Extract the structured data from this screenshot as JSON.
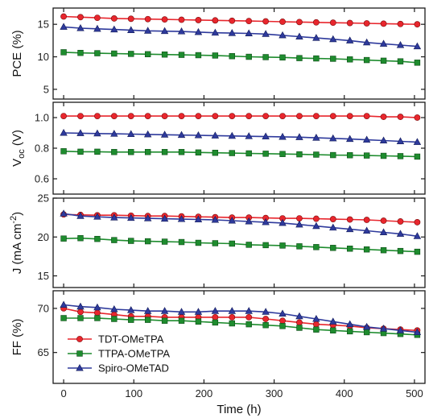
{
  "x_axis": {
    "label": "Time (h)",
    "ticks": [
      0,
      100,
      200,
      300,
      400,
      500
    ],
    "xlim": [
      -15,
      515
    ]
  },
  "legend": {
    "placement": "bottom-left of FF panel",
    "entries": [
      "TDT-OMeTPA",
      "TTPA-OMeTPA",
      "Spiro-OMeTAD"
    ]
  },
  "series_style": [
    {
      "name": "TDT-OMeTPA",
      "color": "#e8262d",
      "marker": "circle"
    },
    {
      "name": "TTPA-OMeTPA",
      "color": "#1e8c2e",
      "marker": "square"
    },
    {
      "name": "Spiro-OMeTAD",
      "color": "#2e3a9c",
      "marker": "triangle"
    }
  ],
  "chart_data": [
    {
      "type": "line",
      "panel": "PCE",
      "ylabel": "PCE (%)",
      "ylabel_sub": "",
      "ylabel_suffix": "",
      "ylim": [
        3.5,
        17.5
      ],
      "yticks": [
        5,
        10,
        15
      ],
      "ytick_labels": [
        "5",
        "10",
        "15"
      ],
      "x": [
        0,
        24,
        48,
        72,
        96,
        120,
        144,
        168,
        192,
        216,
        240,
        264,
        288,
        312,
        336,
        360,
        384,
        408,
        432,
        456,
        480,
        504
      ],
      "series": [
        {
          "name": "TDT-OMeTPA",
          "values": [
            16.2,
            16.1,
            16.0,
            15.9,
            15.85,
            15.8,
            15.75,
            15.7,
            15.65,
            15.6,
            15.55,
            15.5,
            15.45,
            15.4,
            15.35,
            15.3,
            15.25,
            15.2,
            15.15,
            15.1,
            15.05,
            15.0
          ]
        },
        {
          "name": "TTPA-OMeTPA",
          "values": [
            10.7,
            10.6,
            10.55,
            10.5,
            10.45,
            10.4,
            10.35,
            10.3,
            10.25,
            10.2,
            10.1,
            10.0,
            9.95,
            9.9,
            9.8,
            9.75,
            9.7,
            9.6,
            9.5,
            9.4,
            9.3,
            9.1
          ]
        },
        {
          "name": "Spiro-OMeTAD",
          "values": [
            14.6,
            14.4,
            14.3,
            14.2,
            14.1,
            14.0,
            13.95,
            13.9,
            13.8,
            13.7,
            13.65,
            13.6,
            13.5,
            13.3,
            13.1,
            12.9,
            12.7,
            12.5,
            12.2,
            12.0,
            11.8,
            11.6
          ]
        }
      ]
    },
    {
      "type": "line",
      "panel": "Voc",
      "ylabel": "V",
      "ylabel_sub": "oc",
      "ylabel_suffix": " (V)",
      "ylim": [
        0.5,
        1.1
      ],
      "yticks": [
        0.6,
        0.8,
        1.0
      ],
      "ytick_labels": [
        "0.6",
        "0.8",
        "1.0"
      ],
      "x": [
        0,
        24,
        48,
        72,
        96,
        120,
        144,
        168,
        192,
        216,
        240,
        264,
        288,
        312,
        336,
        360,
        384,
        408,
        432,
        456,
        480,
        504
      ],
      "series": [
        {
          "name": "TDT-OMeTPA",
          "values": [
            1.01,
            1.01,
            1.01,
            1.01,
            1.01,
            1.01,
            1.01,
            1.01,
            1.01,
            1.01,
            1.01,
            1.01,
            1.01,
            1.01,
            1.01,
            1.01,
            1.01,
            1.01,
            1.01,
            1.005,
            1.005,
            1.0
          ]
        },
        {
          "name": "TTPA-OMeTPA",
          "values": [
            0.78,
            0.777,
            0.777,
            0.775,
            0.775,
            0.775,
            0.775,
            0.775,
            0.772,
            0.77,
            0.768,
            0.766,
            0.764,
            0.762,
            0.76,
            0.758,
            0.755,
            0.754,
            0.752,
            0.75,
            0.748,
            0.745
          ]
        },
        {
          "name": "Spiro-OMeTAD",
          "values": [
            0.9,
            0.898,
            0.896,
            0.894,
            0.892,
            0.89,
            0.888,
            0.886,
            0.884,
            0.882,
            0.88,
            0.878,
            0.876,
            0.874,
            0.872,
            0.868,
            0.864,
            0.86,
            0.855,
            0.85,
            0.845,
            0.84
          ]
        }
      ]
    },
    {
      "type": "line",
      "panel": "J",
      "ylabel": "J (mA cm",
      "ylabel_sub": "",
      "ylabel_sup": "-2",
      "ylabel_suffix": ")",
      "ylim": [
        13.5,
        25.0
      ],
      "yticks": [
        15,
        20,
        25
      ],
      "ytick_labels": [
        "15",
        "20",
        "25"
      ],
      "x": [
        0,
        24,
        48,
        72,
        96,
        120,
        144,
        168,
        192,
        216,
        240,
        264,
        288,
        312,
        336,
        360,
        384,
        408,
        432,
        456,
        480,
        504
      ],
      "series": [
        {
          "name": "TDT-OMeTPA",
          "values": [
            22.9,
            22.85,
            22.8,
            22.8,
            22.75,
            22.7,
            22.7,
            22.65,
            22.6,
            22.55,
            22.5,
            22.5,
            22.45,
            22.4,
            22.4,
            22.35,
            22.3,
            22.25,
            22.2,
            22.1,
            22.0,
            21.9
          ]
        },
        {
          "name": "TTPA-OMeTPA",
          "values": [
            19.8,
            19.85,
            19.75,
            19.6,
            19.5,
            19.45,
            19.4,
            19.35,
            19.25,
            19.2,
            19.15,
            19.0,
            18.95,
            18.9,
            18.8,
            18.7,
            18.6,
            18.5,
            18.4,
            18.3,
            18.2,
            18.1
          ]
        },
        {
          "name": "Spiro-OMeTAD",
          "values": [
            23.0,
            22.7,
            22.6,
            22.5,
            22.45,
            22.4,
            22.35,
            22.3,
            22.25,
            22.2,
            22.1,
            22.0,
            21.9,
            21.8,
            21.6,
            21.4,
            21.2,
            21.0,
            20.8,
            20.6,
            20.4,
            20.1
          ]
        }
      ]
    },
    {
      "type": "line",
      "panel": "FF",
      "ylabel": "FF (%)",
      "ylabel_sub": "",
      "ylabel_suffix": "",
      "ylim": [
        61.5,
        72.0
      ],
      "yticks": [
        65,
        70
      ],
      "ytick_labels": [
        "65",
        "70"
      ],
      "x": [
        0,
        24,
        48,
        72,
        96,
        120,
        144,
        168,
        192,
        216,
        240,
        264,
        288,
        312,
        336,
        360,
        384,
        408,
        432,
        456,
        480,
        504
      ],
      "series": [
        {
          "name": "TDT-OMeTPA",
          "values": [
            70.0,
            69.6,
            69.5,
            69.3,
            69.1,
            69.1,
            69.0,
            69.0,
            69.0,
            69.0,
            69.0,
            69.0,
            68.8,
            68.6,
            68.4,
            68.2,
            68.1,
            68.0,
            67.8,
            67.7,
            67.6,
            67.5
          ]
        },
        {
          "name": "TTPA-OMeTPA",
          "values": [
            68.9,
            68.9,
            68.9,
            68.8,
            68.7,
            68.7,
            68.6,
            68.6,
            68.5,
            68.4,
            68.3,
            68.2,
            68.1,
            68.0,
            67.8,
            67.6,
            67.5,
            67.4,
            67.3,
            67.2,
            67.1,
            67.0
          ]
        },
        {
          "name": "Spiro-OMeTAD",
          "values": [
            70.4,
            70.2,
            70.1,
            69.9,
            69.8,
            69.7,
            69.7,
            69.6,
            69.6,
            69.7,
            69.7,
            69.7,
            69.6,
            69.4,
            69.1,
            68.8,
            68.5,
            68.2,
            67.9,
            67.7,
            67.5,
            67.3
          ]
        }
      ]
    }
  ]
}
